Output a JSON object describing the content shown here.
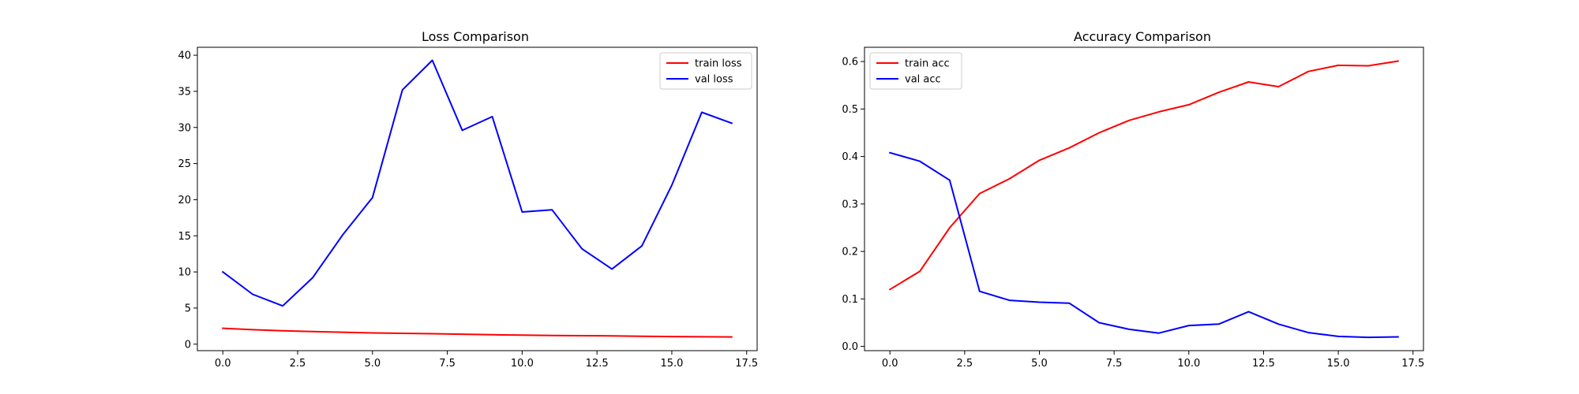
{
  "chart_data": [
    {
      "type": "line",
      "title": "Loss Comparison",
      "xlabel": "",
      "ylabel": "",
      "x": [
        0,
        1,
        2,
        3,
        4,
        5,
        6,
        7,
        8,
        9,
        10,
        11,
        12,
        13,
        14,
        15,
        16,
        17
      ],
      "xlim": [
        -0.85,
        17.85
      ],
      "ylim": [
        -0.9,
        41.1
      ],
      "xticks": [
        0.0,
        2.5,
        5.0,
        7.5,
        10.0,
        12.5,
        15.0,
        17.5
      ],
      "xtick_labels": [
        "0.0",
        "2.5",
        "5.0",
        "7.5",
        "10.0",
        "12.5",
        "15.0",
        "17.5"
      ],
      "yticks": [
        0,
        5,
        10,
        15,
        20,
        25,
        30,
        35,
        40
      ],
      "ytick_labels": [
        "0",
        "5",
        "10",
        "15",
        "20",
        "25",
        "30",
        "35",
        "40"
      ],
      "grid": false,
      "legend_position": "upper right",
      "series": [
        {
          "name": "train loss",
          "color": "#ff0000",
          "values": [
            2.2,
            2.0,
            1.85,
            1.75,
            1.65,
            1.55,
            1.5,
            1.45,
            1.38,
            1.3,
            1.25,
            1.2,
            1.17,
            1.15,
            1.1,
            1.05,
            1.02,
            1.0
          ]
        },
        {
          "name": "val loss",
          "color": "#0000ff",
          "values": [
            10.0,
            6.9,
            5.3,
            9.2,
            15.1,
            20.3,
            35.2,
            39.3,
            29.6,
            31.5,
            18.3,
            18.6,
            13.2,
            10.4,
            13.6,
            22.0,
            32.1,
            30.6
          ]
        }
      ]
    },
    {
      "type": "line",
      "title": "Accuracy Comparison",
      "xlabel": "",
      "ylabel": "",
      "x": [
        0,
        1,
        2,
        3,
        4,
        5,
        6,
        7,
        8,
        9,
        10,
        11,
        12,
        13,
        14,
        15,
        16,
        17
      ],
      "xlim": [
        -0.85,
        17.85
      ],
      "ylim": [
        -0.009,
        0.63
      ],
      "xticks": [
        0.0,
        2.5,
        5.0,
        7.5,
        10.0,
        12.5,
        15.0,
        17.5
      ],
      "xtick_labels": [
        "0.0",
        "2.5",
        "5.0",
        "7.5",
        "10.0",
        "12.5",
        "15.0",
        "17.5"
      ],
      "yticks": [
        0.0,
        0.1,
        0.2,
        0.3,
        0.4,
        0.5,
        0.6
      ],
      "ytick_labels": [
        "0.0",
        "0.1",
        "0.2",
        "0.3",
        "0.4",
        "0.5",
        "0.6"
      ],
      "grid": false,
      "legend_position": "upper left",
      "series": [
        {
          "name": "train acc",
          "color": "#ff0000",
          "values": [
            0.12,
            0.158,
            0.25,
            0.322,
            0.353,
            0.392,
            0.418,
            0.45,
            0.476,
            0.494,
            0.509,
            0.535,
            0.557,
            0.547,
            0.579,
            0.592,
            0.591,
            0.601
          ]
        },
        {
          "name": "val acc",
          "color": "#0000ff",
          "values": [
            0.408,
            0.39,
            0.35,
            0.116,
            0.097,
            0.093,
            0.091,
            0.05,
            0.036,
            0.028,
            0.044,
            0.047,
            0.073,
            0.047,
            0.029,
            0.021,
            0.019,
            0.02
          ]
        }
      ]
    }
  ]
}
